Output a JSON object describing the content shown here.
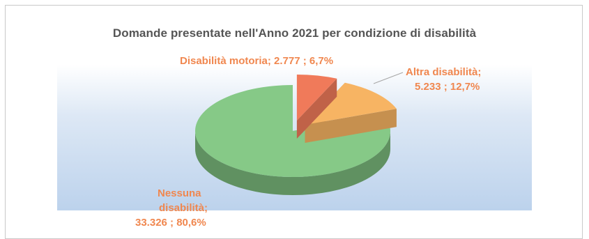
{
  "chart_data": {
    "type": "pie",
    "title": "Domande presentate nell'Anno 2021 per condizione di disabilità",
    "categories": [
      "Disabilità motoria",
      "Altra disabilità",
      "Nessuna disabilità"
    ],
    "values": [
      2777,
      5233,
      33326
    ],
    "percentages": [
      6.7,
      12.7,
      80.6
    ],
    "colors": [
      "#f07a5a",
      "#f7b463",
      "#86c987"
    ],
    "exploded": true,
    "three_d": true
  },
  "labels": {
    "motoria": "Disabilità motoria;  2.777 ; 6,7%",
    "altra_line1": "Altra disabilità;",
    "altra_line2": "5.233 ; 12,7%",
    "nessuna_line1": "Nessuna",
    "nessuna_line2": "disabilità;",
    "nessuna_line3": "33.326 ; 80,6%"
  },
  "colors": {
    "label_text": "#f0874f",
    "title_text": "#555555",
    "plot_bg_top": "#ffffff",
    "plot_bg_bottom": "#c6d9ef"
  }
}
